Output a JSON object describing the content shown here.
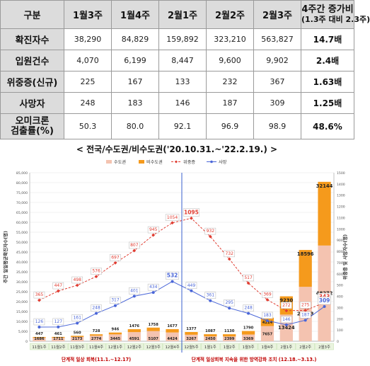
{
  "table": {
    "header": {
      "label": "구분",
      "cols": [
        "1월3주",
        "1월4주",
        "2월1주",
        "2월2주",
        "2월3주"
      ],
      "change_title": "4주간 증가비",
      "change_sub": "(1.3주 대비 2.3주)"
    },
    "rows": [
      {
        "label": "확진자수",
        "values": [
          "38,290",
          "84,829",
          "159,892",
          "323,210",
          "563,827"
        ],
        "change": "14.7배"
      },
      {
        "label": "입원건수",
        "values": [
          "4,070",
          "6,199",
          "8,447",
          "9,600",
          "9,902"
        ],
        "change": "2.4배"
      },
      {
        "label": "위중증(신규)",
        "values": [
          "225",
          "167",
          "133",
          "232",
          "367"
        ],
        "change": "1.63배"
      },
      {
        "label": "사망자",
        "values": [
          "248",
          "183",
          "146",
          "187",
          "309"
        ],
        "change": "1.25배"
      },
      {
        "label_line1": "오미크론",
        "label_line2": "검출률(%)",
        "values": [
          "50.3",
          "80.0",
          "92.1",
          "96.9",
          "98.9"
        ],
        "change": "48.6%"
      }
    ]
  },
  "subtitle": "< 전국/수도권/비수도권('20.10.31.~'22.2.19.) >",
  "chart_data": {
    "type": "bar",
    "categories": [
      "11월1주",
      "11월2주",
      "11월3주",
      "11월4주",
      "12월1주",
      "12월2주",
      "12월3주",
      "12월4주",
      "12월5주",
      "1월1주",
      "1월2주",
      "1월3주",
      "1월4주",
      "2월1주",
      "2월2주",
      "2월3주"
    ],
    "series": [
      {
        "name": "수도권",
        "kind": "bar",
        "color": "#f4c3b0",
        "values": [
          1686,
          1711,
          2173,
          2774,
          3445,
          4591,
          5107,
          4424,
          3267,
          2450,
          2399,
          3369,
          7657,
          13424,
          27443,
          48272
        ]
      },
      {
        "name": "비수도권",
        "kind": "bar",
        "color": "#f59a1c",
        "values": [
          447,
          461,
          560,
          728,
          946,
          1476,
          1758,
          1677,
          1377,
          1087,
          1130,
          1790,
          4214,
          9230,
          18596,
          32144
        ]
      },
      {
        "name": "위중증",
        "kind": "line",
        "color": "#e03c31",
        "values": [
          365,
          447,
          498,
          576,
          697,
          807,
          945,
          1054,
          1095,
          932,
          732,
          517,
          369,
          272,
          275,
          343
        ]
      },
      {
        "name": "사망",
        "kind": "line",
        "color": "#4a66d8",
        "values": [
          126,
          127,
          161,
          248,
          317,
          401,
          434,
          532,
          449,
          361,
          295,
          248,
          183,
          146,
          187,
          309
        ]
      }
    ],
    "ylabel": "주간 일일평균확진자수(명)",
    "y2label": "위중증 및 사망자수(명)",
    "ylim": [
      0,
      85000
    ],
    "yticks": [
      0,
      5000,
      10000,
      15000,
      20000,
      25000,
      30000,
      35000,
      40000,
      45000,
      50000,
      55000,
      60000,
      65000,
      70000,
      75000,
      80000,
      85000
    ],
    "y2lim": [
      0,
      1500
    ],
    "y2ticks": [
      0,
      100,
      200,
      300,
      400,
      500,
      600,
      700,
      800,
      900,
      1000,
      1100,
      1200,
      1300,
      1400,
      1500
    ],
    "annotations": [
      {
        "text": "단계적 일상 회복(11.1.~12.17)",
        "color": "#c00000"
      },
      {
        "text": "단계적 일상회복 지속을 위한 방역강화 조치 (12.18.~3.13.)",
        "color": "#c00000"
      }
    ]
  },
  "colors": {
    "divider": "#3a5fcd",
    "header_bg": "#dcdcdc"
  }
}
